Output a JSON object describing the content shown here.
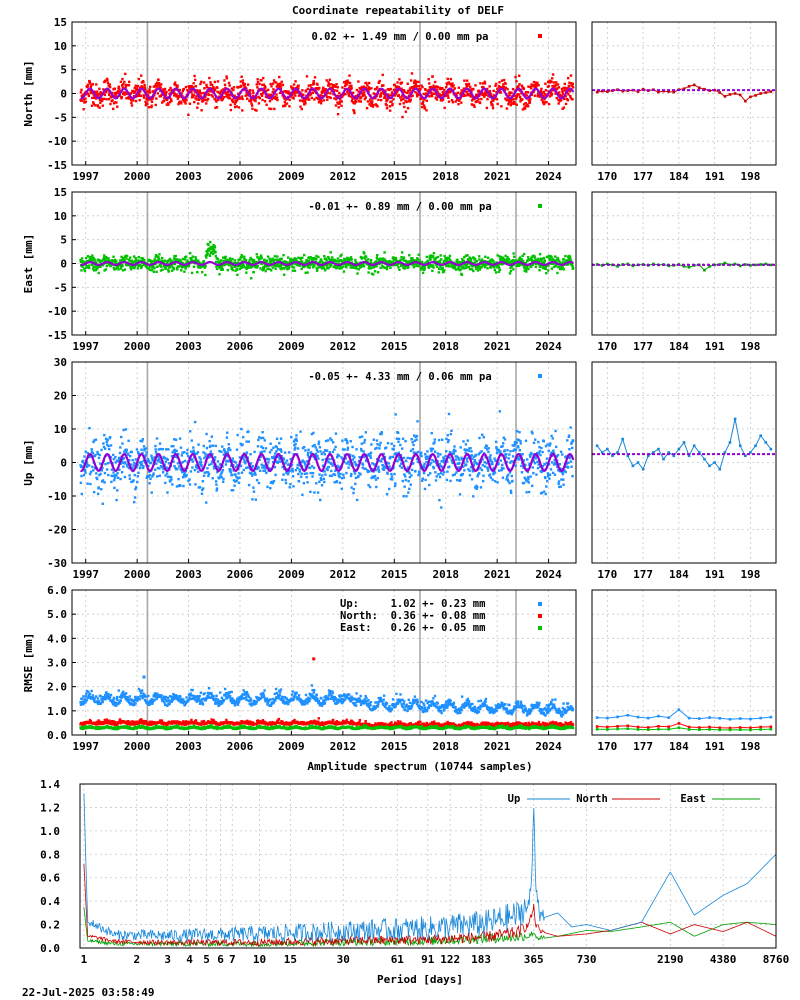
{
  "title": "Coordinate repeatability of DELF",
  "footer": "22-Jul-2025 03:58:49",
  "colors": {
    "north": "#ff0000",
    "east": "#00c000",
    "up": "#1e90ff",
    "model": "#9400d3",
    "lineNorth": "#cc0000",
    "lineEast": "#00a000",
    "lineUp": "#1a88d8"
  },
  "chart_data": [
    {
      "type": "scatter",
      "name": "north-panel",
      "ylabel": "North [mm]",
      "ylim": [
        -15,
        15
      ],
      "yticks": [
        -15,
        -10,
        -5,
        0,
        5,
        10,
        15
      ],
      "xlim": [
        1996.2,
        2025.6
      ],
      "xticks": [
        1997,
        2000,
        2003,
        2006,
        2009,
        2012,
        2015,
        2018,
        2021,
        2024
      ],
      "annotation": "0.02 +- 1.49 mm /  0.00 mm pa",
      "breaks": [
        2000.6,
        2016.5,
        2022.1
      ],
      "noise_sd": 1.49,
      "seasonal_amplitude": 1.0,
      "zoom": {
        "xlim": [
          167,
          203
        ],
        "xticks": [
          170,
          177,
          184,
          191,
          198
        ],
        "x": [
          168,
          169,
          170,
          171,
          172,
          173,
          174,
          175,
          176,
          177,
          178,
          179,
          180,
          181,
          182,
          183,
          184,
          185,
          186,
          187,
          188,
          189,
          190,
          191,
          192,
          193,
          194,
          195,
          196,
          197,
          198,
          199,
          200,
          201,
          202
        ],
        "y": [
          0.3,
          0.5,
          0.4,
          0.6,
          0.8,
          0.5,
          0.6,
          0.7,
          0.4,
          0.9,
          0.6,
          0.8,
          0.3,
          0.5,
          0.4,
          0.3,
          0.8,
          1.0,
          1.5,
          1.8,
          1.2,
          0.9,
          0.6,
          0.7,
          0.2,
          -0.6,
          -0.2,
          0.0,
          -0.3,
          -1.6,
          -0.7,
          -0.4,
          0.0,
          0.2,
          0.4
        ]
      }
    },
    {
      "type": "scatter",
      "name": "east-panel",
      "ylabel": "East [mm]",
      "ylim": [
        -15,
        15
      ],
      "yticks": [
        -15,
        -10,
        -5,
        0,
        5,
        10,
        15
      ],
      "xlim": [
        1996.2,
        2025.6
      ],
      "xticks": [
        1997,
        2000,
        2003,
        2006,
        2009,
        2012,
        2015,
        2018,
        2021,
        2024
      ],
      "annotation": "-0.01 +- 0.89 mm /  0.00 mm pa",
      "breaks": [
        2000.6,
        2016.5,
        2022.1
      ],
      "noise_sd": 0.89,
      "seasonal_amplitude": 0.3,
      "zoom": {
        "xlim": [
          167,
          203
        ],
        "xticks": [
          170,
          177,
          184,
          191,
          198
        ],
        "x": [
          168,
          169,
          170,
          171,
          172,
          173,
          174,
          175,
          176,
          177,
          178,
          179,
          180,
          181,
          182,
          183,
          184,
          185,
          186,
          187,
          188,
          189,
          190,
          191,
          192,
          193,
          194,
          195,
          196,
          197,
          198,
          199,
          200,
          201,
          202
        ],
        "y": [
          -0.2,
          -0.4,
          -0.1,
          -0.3,
          -0.6,
          -0.2,
          -0.1,
          -0.5,
          -0.3,
          -0.2,
          -0.4,
          -0.1,
          -0.3,
          -0.2,
          -0.5,
          -0.4,
          -0.2,
          -0.6,
          -0.8,
          -0.4,
          -0.3,
          -1.4,
          -0.6,
          -0.3,
          -0.2,
          0.1,
          -0.3,
          -0.1,
          -0.5,
          -0.2,
          -0.4,
          -0.3,
          -0.2,
          -0.1,
          -0.3
        ]
      }
    },
    {
      "type": "scatter",
      "name": "up-panel",
      "ylabel": "Up [mm]",
      "ylim": [
        -30,
        30
      ],
      "yticks": [
        -30,
        -20,
        -10,
        0,
        10,
        20,
        30
      ],
      "xlim": [
        1996.2,
        2025.6
      ],
      "xticks": [
        1997,
        2000,
        2003,
        2006,
        2009,
        2012,
        2015,
        2018,
        2021,
        2024
      ],
      "annotation": "-0.05 +- 4.33 mm /  0.06 mm pa",
      "breaks": [
        2000.6,
        2016.5,
        2022.1
      ],
      "noise_sd": 4.33,
      "seasonal_amplitude": 2.5,
      "zoom": {
        "xlim": [
          167,
          203
        ],
        "xticks": [
          170,
          177,
          184,
          191,
          198
        ],
        "x": [
          168,
          169,
          170,
          171,
          172,
          173,
          174,
          175,
          176,
          177,
          178,
          179,
          180,
          181,
          182,
          183,
          184,
          185,
          186,
          187,
          188,
          189,
          190,
          191,
          192,
          193,
          194,
          195,
          196,
          197,
          198,
          199,
          200,
          201,
          202
        ],
        "y": [
          5,
          3,
          4,
          2,
          3,
          7,
          2,
          -1,
          0,
          -2,
          2,
          3,
          4,
          1,
          3,
          2,
          4,
          6,
          2,
          5,
          3,
          1,
          -1,
          0,
          -2,
          3,
          6,
          13,
          5,
          2,
          3,
          5,
          8,
          6,
          4
        ]
      }
    },
    {
      "type": "scatter",
      "name": "rmse-panel",
      "ylabel": "RMSE [mm]",
      "ylim": [
        0.0,
        6.0
      ],
      "yticks": [
        0.0,
        1.0,
        2.0,
        3.0,
        4.0,
        5.0,
        6.0
      ],
      "xlim": [
        1996.2,
        2025.6
      ],
      "xticks": [
        1997,
        2000,
        2003,
        2006,
        2009,
        2012,
        2015,
        2018,
        2021,
        2024
      ],
      "breaks": [
        2000.6,
        2016.5,
        2022.1
      ],
      "legend": [
        {
          "label": "Up:     1.02 +- 0.23 mm",
          "series": "up"
        },
        {
          "label": "North:  0.36 +- 0.08 mm",
          "series": "north"
        },
        {
          "label": "East:   0.26 +- 0.05 mm",
          "series": "east"
        }
      ],
      "zoom": {
        "xlim": [
          167,
          203
        ],
        "xticks": [
          170,
          177,
          184,
          191,
          198
        ],
        "x": [
          168,
          170,
          172,
          174,
          176,
          178,
          180,
          182,
          184,
          186,
          188,
          190,
          192,
          194,
          196,
          198,
          200,
          202
        ],
        "up": [
          0.72,
          0.7,
          0.75,
          0.82,
          0.74,
          0.7,
          0.78,
          0.72,
          1.05,
          0.7,
          0.68,
          0.72,
          0.69,
          0.65,
          0.68,
          0.66,
          0.7,
          0.74
        ],
        "north": [
          0.35,
          0.33,
          0.36,
          0.38,
          0.33,
          0.31,
          0.36,
          0.34,
          0.48,
          0.33,
          0.31,
          0.33,
          0.3,
          0.29,
          0.31,
          0.3,
          0.33,
          0.34
        ],
        "east": [
          0.24,
          0.23,
          0.25,
          0.26,
          0.23,
          0.22,
          0.24,
          0.24,
          0.3,
          0.23,
          0.22,
          0.23,
          0.21,
          0.21,
          0.22,
          0.21,
          0.23,
          0.24
        ]
      }
    },
    {
      "type": "line",
      "name": "amplitude-spectrum",
      "title": "Amplitude spectrum (10744 samples)",
      "xlabel": "Period [days]",
      "xscale": "log",
      "xlim": [
        0.95,
        8760
      ],
      "ylim": [
        0.0,
        1.4
      ],
      "yticks": [
        0.0,
        0.2,
        0.4,
        0.6,
        0.8,
        1.0,
        1.2,
        1.4
      ],
      "xticks": [
        1,
        2,
        3,
        4,
        5,
        6,
        7,
        10,
        15,
        30,
        61,
        91,
        122,
        183,
        365,
        730,
        2190,
        4380,
        8760
      ],
      "xtick_labels": [
        "1",
        "2",
        "3",
        "4",
        "5",
        "6",
        "7",
        "10",
        "15",
        "30",
        "61",
        "91",
        "122",
        "183",
        "365",
        "730",
        "2190",
        "4380",
        "8760"
      ],
      "series": [
        {
          "name": "Up",
          "key": "up",
          "periods": [
            1.0,
            1.05,
            1.5,
            3,
            10,
            30,
            100,
            200,
            300,
            340,
            355,
            365,
            375,
            400,
            500,
            600,
            730,
            1000,
            1500,
            2190,
            3000,
            4380,
            6000,
            8760
          ],
          "values": [
            1.32,
            0.22,
            0.1,
            0.09,
            0.1,
            0.12,
            0.14,
            0.18,
            0.25,
            0.35,
            0.55,
            1.25,
            0.55,
            0.25,
            0.3,
            0.18,
            0.2,
            0.15,
            0.22,
            0.65,
            0.28,
            0.45,
            0.55,
            0.8
          ],
          "noise": 0.07
        },
        {
          "name": "North",
          "key": "north",
          "periods": [
            1.0,
            1.05,
            1.5,
            3,
            10,
            30,
            100,
            200,
            300,
            340,
            355,
            365,
            375,
            400,
            500,
            730,
            1000,
            1500,
            2190,
            3000,
            4380,
            6000,
            8760
          ],
          "values": [
            0.72,
            0.1,
            0.05,
            0.04,
            0.04,
            0.05,
            0.06,
            0.08,
            0.12,
            0.2,
            0.28,
            0.35,
            0.2,
            0.14,
            0.1,
            0.12,
            0.15,
            0.22,
            0.12,
            0.2,
            0.14,
            0.22,
            0.1
          ],
          "noise": 0.03
        },
        {
          "name": "East",
          "key": "east",
          "periods": [
            1.0,
            1.05,
            1.5,
            3,
            10,
            30,
            100,
            200,
            300,
            340,
            355,
            365,
            375,
            400,
            500,
            730,
            1000,
            1500,
            2190,
            3000,
            4380,
            6000,
            8760
          ],
          "values": [
            0.35,
            0.06,
            0.03,
            0.03,
            0.03,
            0.04,
            0.05,
            0.07,
            0.08,
            0.1,
            0.12,
            0.14,
            0.1,
            0.08,
            0.1,
            0.15,
            0.14,
            0.18,
            0.22,
            0.1,
            0.2,
            0.22,
            0.2
          ],
          "noise": 0.025
        }
      ]
    }
  ]
}
